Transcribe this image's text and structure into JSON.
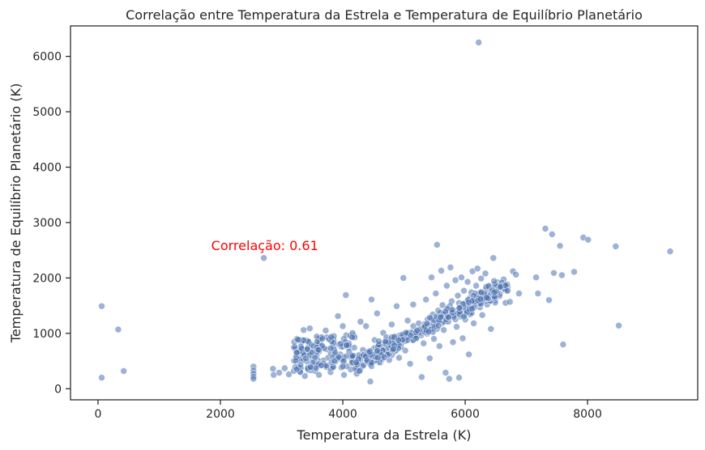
{
  "chart_data": {
    "type": "scatter",
    "title": "Correlação entre Temperatura da Estrela e Temperatura de Equilíbrio Planetário",
    "xlabel": "Temperatura da Estrela (K)",
    "ylabel": "Temperatura de Equilíbrio Planetário (K)",
    "xlim": [
      -450,
      9800
    ],
    "ylim": [
      -200,
      6550
    ],
    "xticks": [
      "0",
      "2000",
      "4000",
      "6000",
      "8000"
    ],
    "xtick_values": [
      0,
      2000,
      4000,
      6000,
      8000
    ],
    "yticks": [
      "0",
      "1000",
      "2000",
      "3000",
      "4000",
      "5000",
      "6000"
    ],
    "ytick_values": [
      0,
      1000,
      2000,
      3000,
      4000,
      5000,
      6000
    ],
    "grid": false,
    "marker_color": "#4c72b0",
    "annotation": {
      "text": "Correlação: 0.61",
      "color": "#ff0000",
      "x": 1850,
      "y": 2500
    },
    "points": [
      [
        60,
        1490
      ],
      [
        60,
        200
      ],
      [
        330,
        1070
      ],
      [
        420,
        320
      ],
      [
        2540,
        400
      ],
      [
        2540,
        330
      ],
      [
        2540,
        270
      ],
      [
        2540,
        220
      ],
      [
        2540,
        180
      ],
      [
        2710,
        2360
      ],
      [
        2860,
        360
      ],
      [
        2870,
        250
      ],
      [
        2960,
        290
      ],
      [
        3050,
        370
      ],
      [
        3120,
        260
      ],
      [
        3200,
        320
      ],
      [
        3230,
        700
      ],
      [
        3260,
        600
      ],
      [
        3300,
        380
      ],
      [
        3330,
        880
      ],
      [
        3360,
        1060
      ],
      [
        3380,
        230
      ],
      [
        3420,
        490
      ],
      [
        3460,
        1090
      ],
      [
        3500,
        560
      ],
      [
        3550,
        320
      ],
      [
        3580,
        680
      ],
      [
        3610,
        250
      ],
      [
        3650,
        930
      ],
      [
        3690,
        420
      ],
      [
        3720,
        1050
      ],
      [
        3760,
        560
      ],
      [
        3800,
        300
      ],
      [
        3840,
        750
      ],
      [
        3880,
        490
      ],
      [
        3920,
        1310
      ],
      [
        3960,
        620
      ],
      [
        4000,
        1130
      ],
      [
        4020,
        250
      ],
      [
        4050,
        1690
      ],
      [
        4100,
        820
      ],
      [
        4130,
        350
      ],
      [
        4180,
        960
      ],
      [
        4240,
        500
      ],
      [
        4290,
        1210
      ],
      [
        4330,
        700
      ],
      [
        4380,
        1130
      ],
      [
        4420,
        620
      ],
      [
        4450,
        130
      ],
      [
        4470,
        1610
      ],
      [
        4520,
        880
      ],
      [
        4560,
        1360
      ],
      [
        4610,
        470
      ],
      [
        4660,
        1010
      ],
      [
        4710,
        740
      ],
      [
        4760,
        520
      ],
      [
        4800,
        1160
      ],
      [
        4840,
        810
      ],
      [
        4880,
        1490
      ],
      [
        4920,
        560
      ],
      [
        4960,
        940
      ],
      [
        4990,
        2000
      ],
      [
        5020,
        690
      ],
      [
        5060,
        1230
      ],
      [
        5100,
        450
      ],
      [
        5150,
        1520
      ],
      [
        5190,
        930
      ],
      [
        5240,
        1180
      ],
      [
        5290,
        210
      ],
      [
        5320,
        820
      ],
      [
        5360,
        1610
      ],
      [
        5390,
        1060
      ],
      [
        5420,
        550
      ],
      [
        5450,
        2010
      ],
      [
        5470,
        1340
      ],
      [
        5490,
        900
      ],
      [
        5520,
        1720
      ],
      [
        5540,
        2600
      ],
      [
        5560,
        1410
      ],
      [
        5580,
        770
      ],
      [
        5610,
        2130
      ],
      [
        5630,
        1510
      ],
      [
        5650,
        1060
      ],
      [
        5680,
        290
      ],
      [
        5700,
        1860
      ],
      [
        5720,
        1290
      ],
      [
        5740,
        180
      ],
      [
        5760,
        2190
      ],
      [
        5780,
        1580
      ],
      [
        5800,
        840
      ],
      [
        5820,
        1390
      ],
      [
        5840,
        1960
      ],
      [
        5860,
        1120
      ],
      [
        5880,
        1680
      ],
      [
        5900,
        200
      ],
      [
        5920,
        1450
      ],
      [
        5940,
        2010
      ],
      [
        5960,
        910
      ],
      [
        5980,
        1770
      ],
      [
        6000,
        1250
      ],
      [
        6020,
        1560
      ],
      [
        6040,
        1930
      ],
      [
        6060,
        620
      ],
      [
        6080,
        1400
      ],
      [
        6100,
        1740
      ],
      [
        6120,
        2120
      ],
      [
        6140,
        1180
      ],
      [
        6160,
        1620
      ],
      [
        6180,
        1860
      ],
      [
        6200,
        2170
      ],
      [
        6220,
        6250
      ],
      [
        6240,
        1470
      ],
      [
        6260,
        1990
      ],
      [
        6280,
        1330
      ],
      [
        6300,
        1700
      ],
      [
        6330,
        2080
      ],
      [
        6360,
        1520
      ],
      [
        6390,
        1860
      ],
      [
        6420,
        1080
      ],
      [
        6460,
        2360
      ],
      [
        6490,
        1600
      ],
      [
        6530,
        1920
      ],
      [
        6570,
        1720
      ],
      [
        6610,
        1860
      ],
      [
        6660,
        1550
      ],
      [
        6730,
        1570
      ],
      [
        6780,
        2120
      ],
      [
        6830,
        2060
      ],
      [
        6880,
        1720
      ],
      [
        7160,
        2010
      ],
      [
        7190,
        1720
      ],
      [
        7310,
        2890
      ],
      [
        7370,
        1600
      ],
      [
        7420,
        2790
      ],
      [
        7450,
        2090
      ],
      [
        7550,
        2580
      ],
      [
        7580,
        2050
      ],
      [
        7600,
        800
      ],
      [
        7780,
        2110
      ],
      [
        7930,
        2730
      ],
      [
        8010,
        2690
      ],
      [
        8460,
        2570
      ],
      [
        8510,
        1140
      ],
      [
        9350,
        2480
      ]
    ],
    "cluster": {
      "description_free": true,
      "count": 560,
      "seed": 7
    }
  }
}
